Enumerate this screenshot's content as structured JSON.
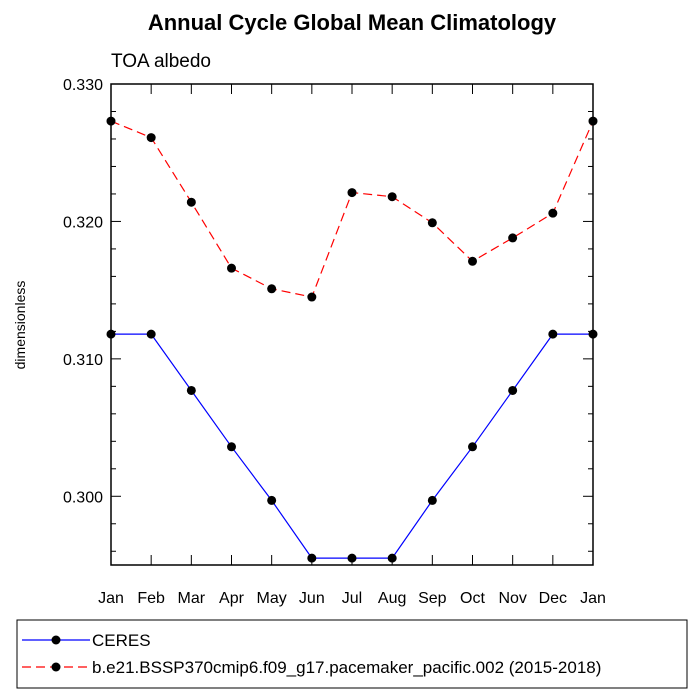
{
  "chart_data": {
    "type": "line",
    "title": "Annual Cycle Global Mean Climatology",
    "subtitle": "TOA albedo",
    "ylabel": "dimensionless",
    "xlabel": "",
    "categories": [
      "Jan",
      "Feb",
      "Mar",
      "Apr",
      "May",
      "Jun",
      "Jul",
      "Aug",
      "Sep",
      "Oct",
      "Nov",
      "Dec",
      "Jan"
    ],
    "ylim": [
      0.295,
      0.33
    ],
    "yticks": [
      "0.300",
      "0.310",
      "0.320",
      "0.330"
    ],
    "ytick_values": [
      0.3,
      0.31,
      0.32,
      0.33
    ],
    "grid": false,
    "legend_position": "bottom",
    "series": [
      {
        "name": "CERES",
        "color": "#0000ff",
        "dash": "solid",
        "values": [
          0.3118,
          0.3118,
          0.3077,
          0.3036,
          0.2997,
          0.2955,
          0.2955,
          0.2955,
          0.2997,
          0.3036,
          0.3077,
          0.3118,
          0.3118
        ]
      },
      {
        "name": "b.e21.BSSP370cmip6.f09_g17.pacemaker_pacific.002 (2015-2018)",
        "color": "#ff0000",
        "dash": "dashed",
        "values": [
          0.3273,
          0.3261,
          0.3214,
          0.3166,
          0.3151,
          0.3145,
          0.3221,
          0.3218,
          0.3199,
          0.3171,
          0.3188,
          0.3206,
          0.3273
        ]
      }
    ]
  }
}
